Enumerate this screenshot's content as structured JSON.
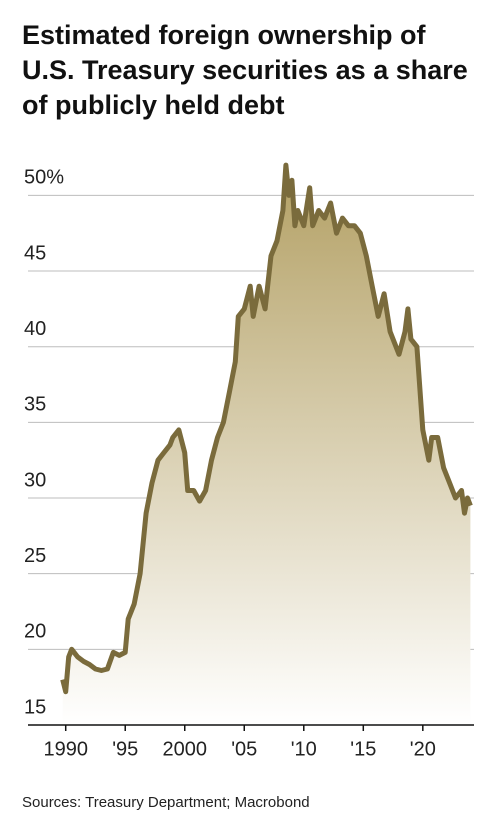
{
  "chart_data": {
    "type": "area",
    "title": "Estimated foreign ownership of U.S. Treasury securities as a share of publicly held debt",
    "source": "Sources: Treasury Department; Macrobond",
    "color": "#7a6b3c",
    "fill_color": "#b3a064",
    "x": [
      1989.75,
      1990.0,
      1990.25,
      1990.5,
      1991,
      1991.5,
      1992,
      1992.5,
      1993,
      1993.5,
      1994,
      1994.5,
      1995,
      1995.25,
      1995.75,
      1996.25,
      1996.75,
      1997.25,
      1997.75,
      1998.25,
      1998.75,
      1999,
      1999.5,
      2000,
      2000.25,
      2000.75,
      2001.25,
      2001.75,
      2002.25,
      2002.75,
      2003.25,
      2003.75,
      2004.25,
      2004.5,
      2005,
      2005.5,
      2005.75,
      2006.25,
      2006.75,
      2007.25,
      2007.75,
      2008.25,
      2008.5,
      2008.75,
      2009,
      2009.25,
      2009.5,
      2010,
      2010.5,
      2010.75,
      2011.25,
      2011.75,
      2012.25,
      2012.75,
      2013.25,
      2013.75,
      2014.25,
      2014.75,
      2015.25,
      2015.75,
      2016.25,
      2016.75,
      2017.25,
      2017.75,
      2018,
      2018.5,
      2018.75,
      2019,
      2019.5,
      2020,
      2020.5,
      2020.75,
      2021.25,
      2021.75,
      2022.25,
      2022.75,
      2023.25,
      2023.5,
      2023.75,
      2024
    ],
    "values": [
      18,
      17.2,
      19.5,
      20,
      19.5,
      19.2,
      19,
      18.7,
      18.6,
      18.7,
      19.8,
      19.6,
      19.8,
      22,
      23,
      25,
      29,
      31,
      32.5,
      33,
      33.5,
      34,
      34.5,
      33,
      30.5,
      30.5,
      29.8,
      30.5,
      32.5,
      34,
      35,
      37,
      39,
      42,
      42.5,
      44,
      42,
      44,
      42.5,
      46,
      47,
      49,
      52,
      50,
      51,
      48,
      49,
      48,
      50.5,
      48,
      49,
      48.5,
      49.5,
      47.5,
      48.5,
      48,
      48,
      47.5,
      46,
      44,
      42,
      43.5,
      41,
      40,
      39.5,
      41,
      42.5,
      40.5,
      40,
      34.5,
      32.5,
      34,
      34,
      32,
      31,
      30,
      30.5,
      29,
      30,
      29.5
    ],
    "xlim": [
      1987,
      2024.3
    ],
    "xticks": [
      1990,
      {
        "value": 1995,
        "label": "'95"
      },
      2000,
      {
        "value": 2005,
        "label": "'05"
      },
      {
        "value": 2010,
        "label": "'10"
      },
      {
        "value": 2015,
        "label": "'15"
      },
      {
        "value": 2020,
        "label": "'20"
      }
    ],
    "ylim": [
      15,
      53
    ],
    "yticks": [
      15,
      20,
      25,
      30,
      35,
      40,
      45,
      {
        "value": 50,
        "label": "50%"
      }
    ],
    "grid": true
  }
}
